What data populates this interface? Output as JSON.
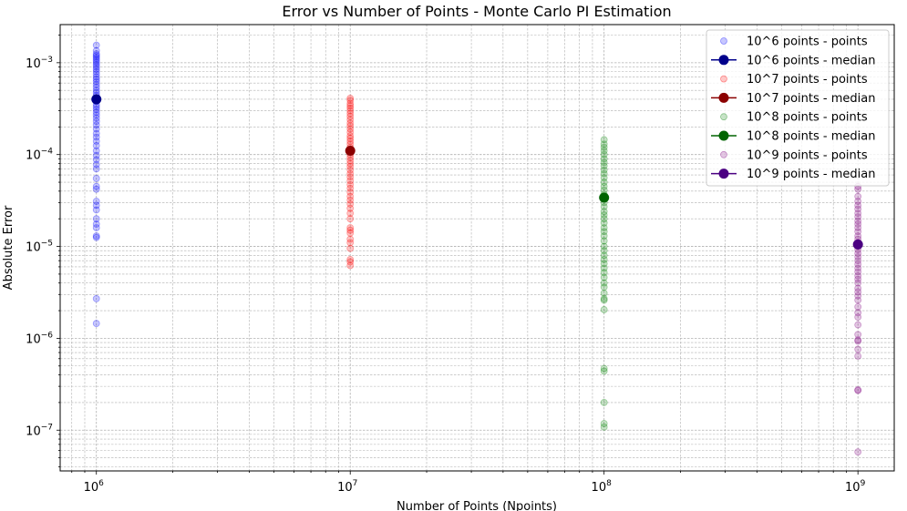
{
  "chart_data": {
    "type": "scatter",
    "title": "Error vs Number of Points - Monte Carlo PI Estimation",
    "xlabel": "Number of Points (Npoints)",
    "ylabel": "Absolute Error",
    "xscale": "log",
    "yscale": "log",
    "xlim": [
      720000,
      1390000000
    ],
    "ylim": [
      3.6e-08,
      0.0026
    ],
    "grid": "major and minor, dashed",
    "legend_position": "top-right",
    "x_ticks": [
      {
        "value": 1000000.0,
        "base": "10",
        "exp": "6"
      },
      {
        "value": 10000000.0,
        "base": "10",
        "exp": "7"
      },
      {
        "value": 100000000.0,
        "base": "10",
        "exp": "8"
      },
      {
        "value": 1000000000.0,
        "base": "10",
        "exp": "9"
      }
    ],
    "y_ticks": [
      {
        "value": 1e-07,
        "base": "10",
        "exp": "−7"
      },
      {
        "value": 1e-06,
        "base": "10",
        "exp": "−6"
      },
      {
        "value": 1e-05,
        "base": "10",
        "exp": "−5"
      },
      {
        "value": 0.0001,
        "base": "10",
        "exp": "−4"
      },
      {
        "value": 0.001,
        "base": "10",
        "exp": "−3"
      }
    ],
    "series": [
      {
        "name": "10^6 points - points",
        "kind": "points",
        "color": "#0000ff",
        "x": 1000000,
        "y": [
          0.00155,
          0.00135,
          0.00125,
          0.0012,
          0.00115,
          0.0011,
          0.00105,
          0.001,
          0.00095,
          0.0009,
          0.00085,
          0.0008,
          0.00075,
          0.0007,
          0.00066,
          0.00062,
          0.00058,
          0.00054,
          0.0005,
          0.00047,
          0.00044,
          0.00041,
          0.00038,
          0.00035,
          0.00033,
          0.00031,
          0.00029,
          0.00027,
          0.00025,
          0.00023,
          0.00021,
          0.00019,
          0.00017,
          0.000155,
          0.00014,
          0.000125,
          0.00011,
          9.8e-05,
          8.8e-05,
          7.8e-05,
          7e-05,
          5.5e-05,
          4.5e-05,
          4.2e-05,
          3.1e-05,
          2.8e-05,
          2.5e-05,
          2e-05,
          1.75e-05,
          1.6e-05,
          1.3e-05,
          1.25e-05,
          2.7e-06,
          1.45e-06
        ]
      },
      {
        "name": "10^6 points - median",
        "kind": "median",
        "color": "#00008b",
        "x": 1000000,
        "y": 0.0004
      },
      {
        "name": "10^7 points - points",
        "kind": "points",
        "color": "#ff0000",
        "x": 10000000,
        "y": [
          0.00041,
          0.00039,
          0.00036,
          0.00034,
          0.00032,
          0.0003,
          0.00028,
          0.00026,
          0.00024,
          0.00022,
          0.000205,
          0.00019,
          0.000175,
          0.00016,
          0.00015,
          0.00014,
          0.00013,
          0.00012,
          0.00011,
          0.0001,
          9.3e-05,
          8.6e-05,
          8e-05,
          7.4e-05,
          6.8e-05,
          6.2e-05,
          5.7e-05,
          5.2e-05,
          4.7e-05,
          4.3e-05,
          3.9e-05,
          3.5e-05,
          3.2e-05,
          2.9e-05,
          2.6e-05,
          2.3e-05,
          2e-05,
          1.6e-05,
          1.5e-05,
          1.4e-05,
          1.2e-05,
          1.1e-05,
          9.5e-06,
          7.2e-06,
          6.8e-06,
          6.2e-06
        ]
      },
      {
        "name": "10^7 points - median",
        "kind": "median",
        "color": "#8b0000",
        "x": 10000000,
        "y": 0.00011
      },
      {
        "name": "10^8 points - points",
        "kind": "points",
        "color": "#008000",
        "x": 100000000,
        "y": [
          0.000145,
          0.00013,
          0.00012,
          0.00011,
          0.0001,
          9e-05,
          8.2e-05,
          7.5e-05,
          6.8e-05,
          6.2e-05,
          5.6e-05,
          5e-05,
          4.5e-05,
          4.1e-05,
          3.7e-05,
          3.3e-05,
          3e-05,
          2.7e-05,
          2.4e-05,
          2.2e-05,
          2e-05,
          1.8e-05,
          1.6e-05,
          1.45e-05,
          1.3e-05,
          1.15e-05,
          1e-05,
          9e-06,
          8e-06,
          7.2e-06,
          6.5e-06,
          5.8e-06,
          5.2e-06,
          4.6e-06,
          4e-06,
          3.6e-06,
          3.1e-06,
          2.7e-06,
          2.6e-06,
          2.05e-06,
          4.7e-07,
          4.4e-07,
          2e-07,
          1.18e-07,
          1.08e-07
        ]
      },
      {
        "name": "10^8 points - median",
        "kind": "median",
        "color": "#006400",
        "x": 100000000,
        "y": 3.4e-05
      },
      {
        "name": "10^9 points - points",
        "kind": "points",
        "color": "#800080",
        "x": 1000000000,
        "y": [
          4.5e-05,
          4.2e-05,
          3.5e-05,
          3.1e-05,
          2.8e-05,
          2.55e-05,
          2.3e-05,
          2.1e-05,
          1.9e-05,
          1.75e-05,
          1.6e-05,
          1.45e-05,
          1.3e-05,
          1.2e-05,
          1.1e-05,
          1e-05,
          9.2e-06,
          8.4e-06,
          7.7e-06,
          7e-06,
          6.4e-06,
          5.8e-06,
          5.3e-06,
          4.8e-06,
          4.4e-06,
          4e-06,
          3.5e-06,
          3.2e-06,
          2.9e-06,
          2.6e-06,
          2.2e-06,
          1.9e-06,
          1.7e-06,
          1.4e-06,
          1.1e-06,
          9.6e-07,
          9.3e-07,
          7.6e-07,
          6.4e-07,
          2.75e-07,
          2.7e-07,
          5.8e-08
        ]
      },
      {
        "name": "10^9 points - median",
        "kind": "median",
        "color": "#4b0082",
        "x": 1000000000,
        "y": 1.05e-05
      }
    ],
    "legend": [
      {
        "label": "10^6 points - points",
        "kind": "points",
        "color": "#0000ff"
      },
      {
        "label": "10^6 points - median",
        "kind": "median",
        "color": "#00008b"
      },
      {
        "label": "10^7 points - points",
        "kind": "points",
        "color": "#ff0000"
      },
      {
        "label": "10^7 points - median",
        "kind": "median",
        "color": "#8b0000"
      },
      {
        "label": "10^8 points - points",
        "kind": "points",
        "color": "#008000"
      },
      {
        "label": "10^8 points - median",
        "kind": "median",
        "color": "#006400"
      },
      {
        "label": "10^9 points - points",
        "kind": "points",
        "color": "#800080"
      },
      {
        "label": "10^9 points - median",
        "kind": "median",
        "color": "#4b0082"
      }
    ]
  }
}
